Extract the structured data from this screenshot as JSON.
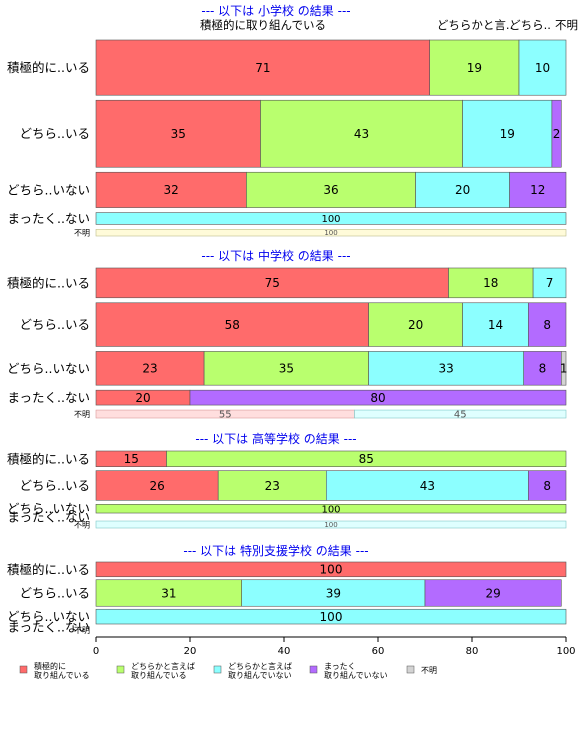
{
  "chart_data": {
    "type": "bar",
    "orientation": "horizontal",
    "stacked": "percent",
    "xlim": [
      0,
      100
    ],
    "x_ticks": [
      0,
      20,
      40,
      60,
      80,
      100
    ],
    "grid": false,
    "colors": {
      "積極的に取り組んでいる": "#ff6b6b",
      "どちらかと言えば取り組んでいる": "#b9ff6e",
      "どちらかと言えば取り組んでいない": "#8cffff",
      "まったく取り組んでいない": "#b36bff",
      "不明": "#d3d3d3",
      "title": "#0000ee"
    },
    "top_labels": [
      "積極的に取り組んでいる",
      "どちらかと言..",
      "どちら..",
      "不明..",
      "不明"
    ],
    "legend": {
      "position": "bottom",
      "items": [
        {
          "key": "積極的に取り組んでいる",
          "lines": [
            "積極的に",
            "取り組んでいる"
          ]
        },
        {
          "key": "どちらかと言えば取り組んでいる",
          "lines": [
            "どちらかと言えば",
            "取り組んでいる"
          ]
        },
        {
          "key": "どちらかと言えば取り組んでいない",
          "lines": [
            "どちらかと言えば",
            "取り組んでいない"
          ]
        },
        {
          "key": "まったく取り組んでいない",
          "lines": [
            "まったく",
            "取り組んでいない"
          ]
        },
        {
          "key": "不明",
          "lines": [
            "不明"
          ]
        }
      ]
    },
    "panels": [
      {
        "title": "--- 以下は 小学校 の結果 ---",
        "rows": [
          {
            "label": "積極的に..いる",
            "weight": 75,
            "segments": [
              {
                "cat": "積極的に取り組んでいる",
                "value": 71
              },
              {
                "cat": "どちらかと言えば取り組んでいる",
                "value": 19
              },
              {
                "cat": "どちらかと言えば取り組んでいない",
                "value": 10
              }
            ]
          },
          {
            "label": "どちら..いる",
            "weight": 91,
            "segments": [
              {
                "cat": "積極的に取り組んでいる",
                "value": 35
              },
              {
                "cat": "どちらかと言えば取り組んでいる",
                "value": 43
              },
              {
                "cat": "どちらかと言えば取り組んでいない",
                "value": 19
              },
              {
                "cat": "まったく取り組んでいない",
                "value": 2
              }
            ]
          },
          {
            "label": "どちら..いない",
            "weight": 48,
            "segments": [
              {
                "cat": "積極的に取り組んでいる",
                "value": 32
              },
              {
                "cat": "どちらかと言えば取り組んでいる",
                "value": 36
              },
              {
                "cat": "どちらかと言えば取り組んでいない",
                "value": 20
              },
              {
                "cat": "まったく取り組んでいない",
                "value": 12
              }
            ]
          },
          {
            "label": "まったく..ない",
            "weight": 16,
            "segments": [
              {
                "cat": "どちらかと言えば取り組んでいない",
                "value": 100
              }
            ]
          },
          {
            "label": "不明",
            "weight": 9,
            "segments": [
              {
                "cat": "ghost",
                "value": 100
              }
            ]
          }
        ]
      },
      {
        "title": "--- 以下は 中学校 の結果 ---",
        "rows": [
          {
            "label": "積極的に..いる",
            "weight": 30,
            "segments": [
              {
                "cat": "積極的に取り組んでいる",
                "value": 75
              },
              {
                "cat": "どちらかと言えば取り組んでいる",
                "value": 18
              },
              {
                "cat": "どちらかと言えば取り組んでいない",
                "value": 7
              }
            ]
          },
          {
            "label": "どちら..いる",
            "weight": 44,
            "segments": [
              {
                "cat": "積極的に取り組んでいる",
                "value": 58
              },
              {
                "cat": "どちらかと言えば取り組んでいる",
                "value": 20
              },
              {
                "cat": "どちらかと言えば取り組んでいない",
                "value": 14
              },
              {
                "cat": "まったく取り組んでいない",
                "value": 8
              }
            ]
          },
          {
            "label": "どちら..いない",
            "weight": 34,
            "segments": [
              {
                "cat": "積極的に取り組んでいる",
                "value": 23
              },
              {
                "cat": "どちらかと言えば取り組んでいる",
                "value": 35
              },
              {
                "cat": "どちらかと言えば取り組んでいない",
                "value": 33
              },
              {
                "cat": "まったく取り組んでいない",
                "value": 8
              },
              {
                "cat": "不明",
                "value": 1
              }
            ]
          },
          {
            "label": "まったく..ない",
            "weight": 15,
            "segments": [
              {
                "cat": "積極的に取り組んでいる",
                "value": 20
              },
              {
                "cat": "まったく取り組んでいない",
                "value": 80
              }
            ]
          },
          {
            "label": "不明",
            "weight": 8,
            "segments": [
              {
                "cat": "ghost",
                "value": 55
              },
              {
                "cat": "ghost",
                "value": 45
              }
            ]
          }
        ]
      },
      {
        "title": "--- 以下は 高等学校 の結果 ---",
        "rows": [
          {
            "label": "積極的に..いる",
            "weight": 9,
            "segments": [
              {
                "cat": "積極的に取り組んでいる",
                "value": 15
              },
              {
                "cat": "どちらかと言えば取り組んでいる",
                "value": 85
              }
            ]
          },
          {
            "label": "どちら..いる",
            "weight": 17,
            "segments": [
              {
                "cat": "積極的に取り組んでいる",
                "value": 26
              },
              {
                "cat": "どちらかと言えば取り組んでいる",
                "value": 23
              },
              {
                "cat": "どちらかと言えば取り組んでいない",
                "value": 43
              },
              {
                "cat": "まったく取り組んでいない",
                "value": 8
              }
            ]
          },
          {
            "label": "どちら..いない",
            "weight": 5,
            "segments": [
              {
                "cat": "どちらかと言えば取り組んでいる",
                "value": 100
              }
            ]
          },
          {
            "label": "まったく..ない",
            "weight": 0,
            "segments": []
          },
          {
            "label": "不明",
            "weight": 4,
            "segments": [
              {
                "cat": "ghost",
                "value": 100
              }
            ]
          }
        ]
      },
      {
        "title": "--- 以下は 特別支援学校 の結果 ---",
        "rows": [
          {
            "label": "積極的に..いる",
            "weight": 5,
            "segments": [
              {
                "cat": "積極的に取り組んでいる",
                "value": 100
              }
            ]
          },
          {
            "label": "どちら..いる",
            "weight": 9,
            "segments": [
              {
                "cat": "どちらかと言えば取り組んでいる",
                "value": 31
              },
              {
                "cat": "どちらかと言えば取り組んでいない",
                "value": 39
              },
              {
                "cat": "まったく取り組んでいない",
                "value": 29
              }
            ]
          },
          {
            "label": "どちら..いない",
            "weight": 5,
            "segments": [
              {
                "cat": "どちらかと言えば取り組んでいない",
                "value": 100
              }
            ]
          },
          {
            "label": "まったく..ない",
            "weight": 0,
            "segments": []
          },
          {
            "label": "不明",
            "weight": 0,
            "segments": []
          }
        ]
      }
    ]
  }
}
